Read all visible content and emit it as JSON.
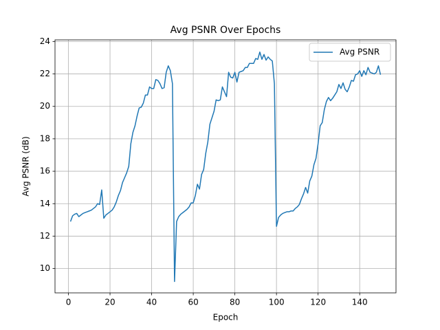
{
  "chart_data": {
    "type": "line",
    "title": "Avg PSNR Over Epochs",
    "x_label": "Epoch",
    "y_label": "Avg PSNR (dB)",
    "x": [
      1,
      2,
      3,
      4,
      5,
      6,
      7,
      8,
      9,
      10,
      11,
      12,
      13,
      14,
      15,
      16,
      17,
      18,
      19,
      20,
      21,
      22,
      23,
      24,
      25,
      26,
      27,
      28,
      29,
      30,
      31,
      32,
      33,
      34,
      35,
      36,
      37,
      38,
      39,
      40,
      41,
      42,
      43,
      44,
      45,
      46,
      47,
      48,
      49,
      50,
      51,
      52,
      53,
      54,
      55,
      56,
      57,
      58,
      59,
      60,
      61,
      62,
      63,
      64,
      65,
      66,
      67,
      68,
      69,
      70,
      71,
      72,
      73,
      74,
      75,
      76,
      77,
      78,
      79,
      80,
      81,
      82,
      83,
      84,
      85,
      86,
      87,
      88,
      89,
      90,
      91,
      92,
      93,
      94,
      95,
      96,
      97,
      98,
      99,
      100,
      101,
      102,
      103,
      104,
      105,
      106,
      107,
      108,
      109,
      110,
      111,
      112,
      113,
      114,
      115,
      116,
      117,
      118,
      119,
      120,
      121,
      122,
      123,
      124,
      125,
      126,
      127,
      128,
      129,
      130,
      131,
      132,
      133,
      134,
      135,
      136,
      137,
      138,
      139,
      140,
      141,
      142,
      143,
      144,
      145,
      146,
      147,
      148,
      149,
      150
    ],
    "series": [
      {
        "name": "Avg PSNR",
        "color": "#1f77b4",
        "values": [
          12.9,
          13.25,
          13.35,
          13.4,
          13.2,
          13.3,
          13.4,
          13.45,
          13.5,
          13.55,
          13.6,
          13.7,
          13.8,
          14.0,
          13.95,
          14.85,
          13.1,
          13.3,
          13.4,
          13.5,
          13.6,
          13.8,
          14.1,
          14.5,
          14.8,
          15.3,
          15.6,
          15.9,
          16.3,
          17.7,
          18.4,
          18.8,
          19.4,
          19.9,
          19.95,
          20.2,
          20.7,
          20.7,
          21.2,
          21.1,
          21.1,
          21.65,
          21.6,
          21.4,
          21.1,
          21.15,
          22.1,
          22.5,
          22.2,
          21.4,
          9.2,
          12.9,
          13.2,
          13.35,
          13.45,
          13.55,
          13.65,
          13.8,
          14.05,
          14.05,
          14.5,
          15.2,
          14.9,
          15.8,
          16.1,
          17.1,
          17.8,
          18.9,
          19.3,
          19.7,
          20.4,
          20.35,
          20.4,
          21.2,
          20.9,
          20.6,
          22.1,
          21.8,
          21.75,
          22.1,
          21.5,
          22.1,
          22.15,
          22.2,
          22.4,
          22.4,
          22.65,
          22.65,
          22.65,
          22.95,
          22.9,
          23.35,
          22.9,
          23.2,
          22.85,
          23.05,
          22.9,
          22.8,
          21.4,
          12.6,
          13.15,
          13.3,
          13.4,
          13.45,
          13.5,
          13.5,
          13.55,
          13.55,
          13.7,
          13.8,
          13.95,
          14.3,
          14.6,
          15.0,
          14.65,
          15.4,
          15.7,
          16.4,
          16.8,
          17.7,
          18.8,
          19.0,
          19.8,
          20.3,
          20.55,
          20.35,
          20.5,
          20.7,
          20.9,
          21.35,
          21.1,
          21.45,
          21.05,
          20.9,
          21.2,
          21.6,
          21.55,
          21.95,
          22.0,
          22.2,
          21.85,
          22.2,
          21.95,
          22.4,
          22.1,
          22.05,
          22.0,
          22.1,
          22.5,
          21.95
        ]
      }
    ],
    "xlim": [
      -6.45,
      157.45
    ],
    "ylim": [
      8.5,
      24.1
    ],
    "xticks": [
      0,
      20,
      40,
      60,
      80,
      100,
      120,
      140
    ],
    "yticks": [
      10,
      12,
      14,
      16,
      18,
      20,
      22,
      24
    ],
    "grid": true,
    "legend": "upper right"
  }
}
